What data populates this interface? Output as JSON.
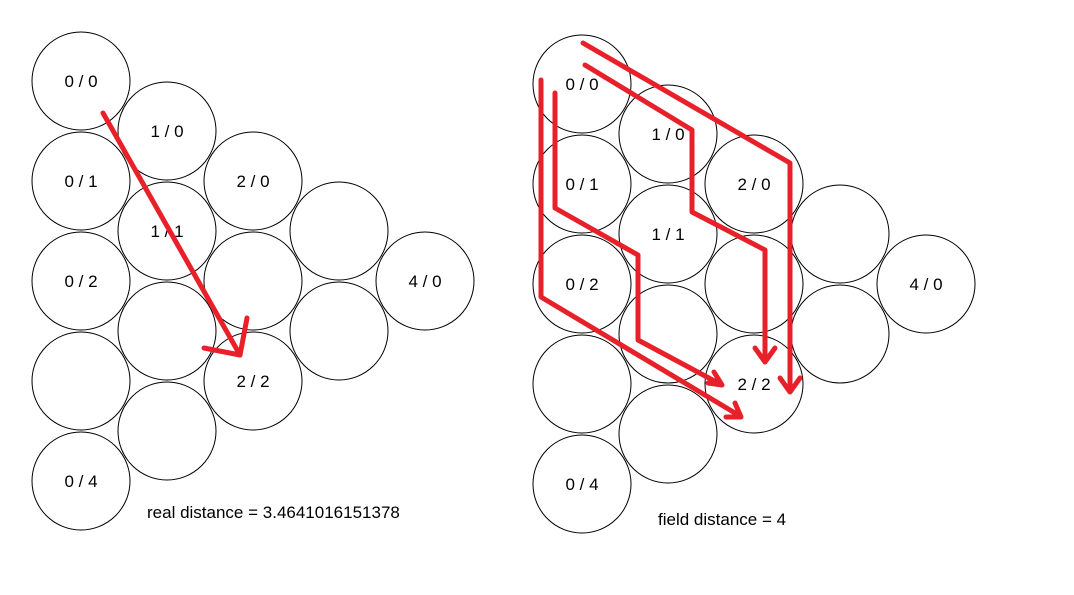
{
  "left_diagram": {
    "cells": [
      {
        "label": "0 / 0"
      },
      {
        "label": "1 / 0"
      },
      {
        "label": "0 / 1"
      },
      {
        "label": "2 / 0"
      },
      {
        "label": "1 / 1"
      },
      {
        "label": "0 / 2"
      },
      {
        "label": ""
      },
      {
        "label": ""
      },
      {
        "label": "4 / 0"
      },
      {
        "label": ""
      },
      {
        "label": "2 / 2"
      },
      {
        "label": ""
      },
      {
        "label": ""
      },
      {
        "label": ""
      },
      {
        "label": "0 / 4"
      }
    ],
    "caption": "real distance = 3.4641016151378"
  },
  "right_diagram": {
    "cells": [
      {
        "label": "0 / 0"
      },
      {
        "label": "1 / 0"
      },
      {
        "label": "0 / 1"
      },
      {
        "label": "2 / 0"
      },
      {
        "label": "1 / 1"
      },
      {
        "label": "0 / 2"
      },
      {
        "label": ""
      },
      {
        "label": ""
      },
      {
        "label": "4 / 0"
      },
      {
        "label": ""
      },
      {
        "label": "2 / 2"
      },
      {
        "label": ""
      },
      {
        "label": ""
      },
      {
        "label": ""
      },
      {
        "label": "0 / 4"
      }
    ],
    "caption": "field distance = 4"
  },
  "colors": {
    "circle_stroke": "#000000",
    "arrow": "#e8202a",
    "background": "#ffffff"
  }
}
